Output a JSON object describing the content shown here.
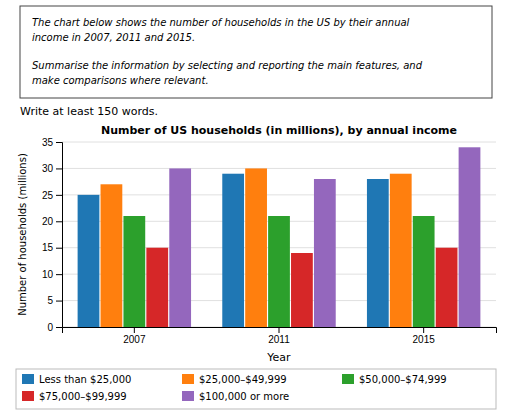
{
  "chart_data": {
    "type": "bar",
    "title": "Number of US households (in millions), by annual income",
    "xlabel": "Year",
    "ylabel": "Number of households (millions)",
    "annotations": [
      "The chart below shows the number of households in the US by their annual",
      "income in 2007, 2011 and 2015.",
      "Summarise the information by selecting and reporting the main features, and",
      "make comparisons where relevant.",
      "Write at least 150 words."
    ],
    "categories": [
      "2007",
      "2011",
      "2015"
    ],
    "series": [
      {
        "name": "Less than $25,000",
        "values": [
          25,
          29,
          28
        ]
      },
      {
        "name": "$25,000–$49,999",
        "values": [
          27,
          30,
          29
        ]
      },
      {
        "name": "$50,000–$74,999",
        "values": [
          21,
          21,
          21
        ]
      },
      {
        "name": "$75,000–$99,999",
        "values": [
          15,
          14,
          15
        ]
      },
      {
        "name": "$100,000 or more",
        "values": [
          30,
          28,
          34
        ]
      }
    ],
    "ylim": [
      0,
      35
    ],
    "yticks": [
      0,
      5,
      10,
      15,
      20,
      25,
      30,
      35
    ],
    "grid": true,
    "legend": "bottom"
  }
}
